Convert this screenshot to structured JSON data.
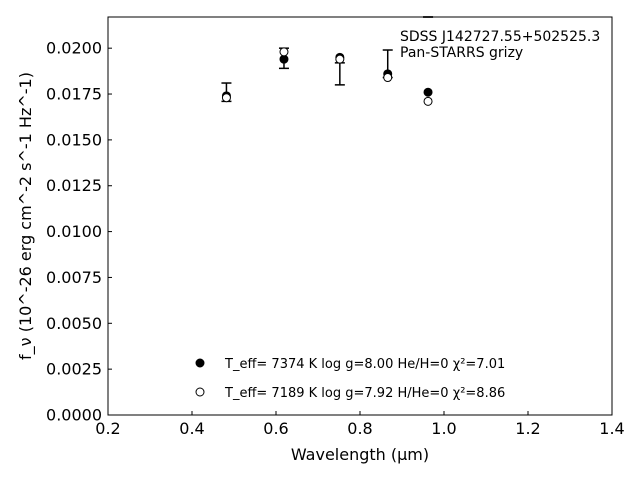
{
  "chart_data": {
    "type": "scatter",
    "title": "",
    "xlabel": "Wavelength (μm)",
    "ylabel": "f_ν (10^-26 erg cm^-2 s^-1 Hz^-1)",
    "xlim": [
      0.2,
      1.4
    ],
    "ylim": [
      0.0,
      0.0217
    ],
    "x_ticks": [
      0.2,
      0.4,
      0.6,
      0.8,
      1.0,
      1.2,
      1.4
    ],
    "x_tick_labels": [
      "0.2",
      "0.4",
      "0.6",
      "0.8",
      "1.0",
      "1.2",
      "1.4"
    ],
    "y_ticks": [
      0.0,
      0.0025,
      0.005,
      0.0075,
      0.01,
      0.0125,
      0.015,
      0.0175,
      0.02
    ],
    "y_tick_labels": [
      "0.0000",
      "0.0025",
      "0.0050",
      "0.0075",
      "0.0100",
      "0.0125",
      "0.0150",
      "0.0175",
      "0.0200"
    ],
    "grid": false,
    "annotation": [
      "SDSS J142727.55+502525.3",
      "Pan-STARRS grizy"
    ],
    "observed": {
      "x": [
        0.482,
        0.619,
        0.752,
        0.866,
        0.962
      ],
      "y_low": [
        0.0171,
        0.0189,
        0.018,
        0.0184,
        0.0217
      ],
      "y_high": [
        0.0181,
        0.02,
        0.0192,
        0.0199,
        0.0217
      ]
    },
    "series": [
      {
        "name": "model-1",
        "marker": "filled",
        "legend": {
          "teff": "7374",
          "logg": "8.00",
          "comp": "He/H=0",
          "chi2": "7.01"
        },
        "x": [
          0.482,
          0.619,
          0.752,
          0.866,
          0.962
        ],
        "y": [
          0.0174,
          0.0194,
          0.0195,
          0.0186,
          0.0176
        ]
      },
      {
        "name": "model-2",
        "marker": "open",
        "legend": {
          "teff": "7189",
          "logg": "7.92",
          "comp": "H/He=0",
          "chi2": "8.86"
        },
        "x": [
          0.482,
          0.619,
          0.752,
          0.866,
          0.962
        ],
        "y": [
          0.0173,
          0.0198,
          0.0194,
          0.0184,
          0.0171
        ]
      }
    ],
    "legend_position": "lower-center"
  }
}
